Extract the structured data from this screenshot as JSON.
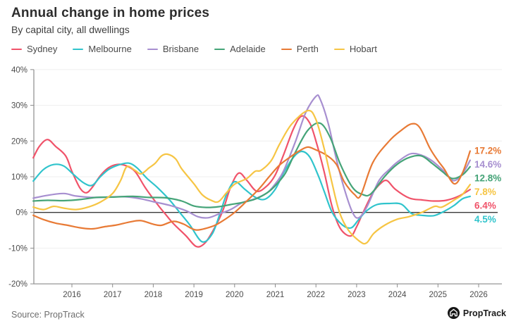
{
  "header": {
    "title": "Annual change in home prices",
    "subtitle": "By capital city, all dwellings"
  },
  "footer": {
    "source": "Source: PropTrack",
    "logo_text": "PropTrack"
  },
  "chart_data": {
    "type": "line",
    "title": "Annual change in home prices",
    "subtitle": "By capital city, all dwellings",
    "grid": "horizontal",
    "legend_position": "top-left",
    "x_axis": {
      "tick_labels": [
        "2016",
        "2017",
        "2018",
        "2019",
        "2020",
        "2021",
        "2022",
        "2023",
        "2024",
        "2025",
        "2026"
      ],
      "range": [
        2015.05,
        2026.45
      ]
    },
    "y_axis": {
      "tick_labels": [
        "40%",
        "30%",
        "20%",
        "10%",
        "0%",
        "-10%",
        "-20%"
      ],
      "tick_values": [
        40,
        30,
        20,
        10,
        0,
        -10,
        -20
      ],
      "range": [
        -20,
        40
      ],
      "zero_line": true
    },
    "series": [
      {
        "name": "Sydney",
        "color": "#f0536a",
        "end_label": "6.4%",
        "points": [
          [
            2015.05,
            15.3
          ],
          [
            2015.2,
            18.5
          ],
          [
            2015.4,
            20.4
          ],
          [
            2015.6,
            18.5
          ],
          [
            2015.85,
            15.8
          ],
          [
            2016.0,
            11.5
          ],
          [
            2016.2,
            6.8
          ],
          [
            2016.35,
            5.5
          ],
          [
            2016.5,
            7.0
          ],
          [
            2016.7,
            10.3
          ],
          [
            2016.9,
            12.5
          ],
          [
            2017.1,
            13.4
          ],
          [
            2017.3,
            13.2
          ],
          [
            2017.55,
            11.5
          ],
          [
            2017.8,
            7.0
          ],
          [
            2018.1,
            2.3
          ],
          [
            2018.3,
            -0.5
          ],
          [
            2018.5,
            -3.2
          ],
          [
            2018.8,
            -6.5
          ],
          [
            2019.05,
            -9.5
          ],
          [
            2019.25,
            -8.8
          ],
          [
            2019.45,
            -5.5
          ],
          [
            2019.7,
            0.2
          ],
          [
            2019.9,
            7.0
          ],
          [
            2020.1,
            11.0
          ],
          [
            2020.3,
            9.0
          ],
          [
            2020.55,
            5.9
          ],
          [
            2020.8,
            7.5
          ],
          [
            2021.0,
            10.5
          ],
          [
            2021.2,
            16.0
          ],
          [
            2021.45,
            23.5
          ],
          [
            2021.65,
            27.0
          ],
          [
            2021.85,
            25.0
          ],
          [
            2022.0,
            20.0
          ],
          [
            2022.2,
            11.5
          ],
          [
            2022.4,
            1.5
          ],
          [
            2022.6,
            -4.5
          ],
          [
            2022.85,
            -6.6
          ],
          [
            2023.0,
            -4.0
          ],
          [
            2023.16,
            0.0
          ],
          [
            2023.4,
            5.5
          ],
          [
            2023.6,
            8.2
          ],
          [
            2023.75,
            8.9
          ],
          [
            2023.95,
            6.5
          ],
          [
            2024.3,
            4.0
          ],
          [
            2024.6,
            3.5
          ],
          [
            2024.9,
            3.2
          ],
          [
            2025.2,
            3.4
          ],
          [
            2025.5,
            4.5
          ],
          [
            2025.79,
            6.4
          ]
        ]
      },
      {
        "name": "Melbourne",
        "color": "#30c4cc",
        "end_label": "4.5%",
        "points": [
          [
            2015.05,
            8.8
          ],
          [
            2015.3,
            12.0
          ],
          [
            2015.55,
            13.4
          ],
          [
            2015.8,
            13.0
          ],
          [
            2016.05,
            10.5
          ],
          [
            2016.3,
            8.2
          ],
          [
            2016.5,
            7.6
          ],
          [
            2016.7,
            10.0
          ],
          [
            2016.9,
            12.0
          ],
          [
            2017.15,
            13.3
          ],
          [
            2017.4,
            13.8
          ],
          [
            2017.6,
            12.5
          ],
          [
            2017.85,
            9.5
          ],
          [
            2018.1,
            7.0
          ],
          [
            2018.4,
            3.5
          ],
          [
            2018.65,
            0.0
          ],
          [
            2018.9,
            -3.5
          ],
          [
            2019.2,
            -8.2
          ],
          [
            2019.45,
            -6.0
          ],
          [
            2019.65,
            0.0
          ],
          [
            2019.8,
            5.0
          ],
          [
            2020.0,
            8.6
          ],
          [
            2020.25,
            6.5
          ],
          [
            2020.5,
            4.3
          ],
          [
            2020.75,
            3.7
          ],
          [
            2021.0,
            6.5
          ],
          [
            2021.2,
            11.0
          ],
          [
            2021.45,
            15.5
          ],
          [
            2021.65,
            17.1
          ],
          [
            2021.85,
            15.5
          ],
          [
            2022.05,
            10.5
          ],
          [
            2022.2,
            6.0
          ],
          [
            2022.4,
            0.0
          ],
          [
            2022.65,
            -3.5
          ],
          [
            2022.87,
            -4.3
          ],
          [
            2023.05,
            -2.0
          ],
          [
            2023.25,
            0.5
          ],
          [
            2023.5,
            2.2
          ],
          [
            2023.8,
            2.5
          ],
          [
            2024.1,
            2.3
          ],
          [
            2024.35,
            -0.3
          ],
          [
            2024.6,
            -0.8
          ],
          [
            2024.9,
            -0.9
          ],
          [
            2025.15,
            0.3
          ],
          [
            2025.4,
            2.0
          ],
          [
            2025.6,
            3.8
          ],
          [
            2025.79,
            4.5
          ]
        ]
      },
      {
        "name": "Brisbane",
        "color": "#a78fd0",
        "end_label": "14.6%",
        "points": [
          [
            2015.05,
            4.0
          ],
          [
            2015.4,
            4.8
          ],
          [
            2015.8,
            5.3
          ],
          [
            2016.1,
            4.6
          ],
          [
            2016.5,
            4.2
          ],
          [
            2016.9,
            4.3
          ],
          [
            2017.3,
            4.4
          ],
          [
            2017.7,
            3.8
          ],
          [
            2018.0,
            3.0
          ],
          [
            2018.4,
            2.0
          ],
          [
            2018.8,
            0.5
          ],
          [
            2019.1,
            -1.2
          ],
          [
            2019.35,
            -1.5
          ],
          [
            2019.6,
            -0.5
          ],
          [
            2019.9,
            0.8
          ],
          [
            2020.2,
            2.8
          ],
          [
            2020.5,
            3.8
          ],
          [
            2020.8,
            5.5
          ],
          [
            2021.0,
            8.0
          ],
          [
            2021.2,
            11.5
          ],
          [
            2021.5,
            20.0
          ],
          [
            2021.75,
            28.0
          ],
          [
            2022.0,
            32.5
          ],
          [
            2022.1,
            31.8
          ],
          [
            2022.3,
            25.0
          ],
          [
            2022.5,
            15.0
          ],
          [
            2022.7,
            6.5
          ],
          [
            2022.9,
            0.0
          ],
          [
            2023.05,
            -1.5
          ],
          [
            2023.25,
            1.5
          ],
          [
            2023.55,
            8.9
          ],
          [
            2023.8,
            12.0
          ],
          [
            2024.0,
            14.1
          ],
          [
            2024.32,
            16.4
          ],
          [
            2024.6,
            16.0
          ],
          [
            2024.85,
            14.5
          ],
          [
            2025.15,
            11.5
          ],
          [
            2025.38,
            8.9
          ],
          [
            2025.6,
            10.8
          ],
          [
            2025.79,
            14.6
          ]
        ]
      },
      {
        "name": "Adelaide",
        "color": "#45a478",
        "end_label": "12.8%",
        "points": [
          [
            2015.05,
            3.2
          ],
          [
            2015.4,
            3.4
          ],
          [
            2015.8,
            3.3
          ],
          [
            2016.2,
            3.6
          ],
          [
            2016.6,
            4.2
          ],
          [
            2017.0,
            4.3
          ],
          [
            2017.5,
            4.5
          ],
          [
            2017.9,
            4.2
          ],
          [
            2018.3,
            4.1
          ],
          [
            2018.7,
            3.2
          ],
          [
            2019.0,
            1.8
          ],
          [
            2019.3,
            1.4
          ],
          [
            2019.6,
            1.6
          ],
          [
            2019.9,
            2.2
          ],
          [
            2020.2,
            2.8
          ],
          [
            2020.5,
            3.7
          ],
          [
            2020.8,
            5.5
          ],
          [
            2021.0,
            7.5
          ],
          [
            2021.25,
            11.0
          ],
          [
            2021.5,
            17.0
          ],
          [
            2021.8,
            23.0
          ],
          [
            2022.1,
            25.0
          ],
          [
            2022.35,
            21.0
          ],
          [
            2022.6,
            13.5
          ],
          [
            2022.9,
            7.0
          ],
          [
            2023.15,
            5.0
          ],
          [
            2023.35,
            5.2
          ],
          [
            2023.7,
            10.2
          ],
          [
            2024.0,
            13.5
          ],
          [
            2024.32,
            15.5
          ],
          [
            2024.6,
            15.8
          ],
          [
            2024.85,
            13.8
          ],
          [
            2025.1,
            11.5
          ],
          [
            2025.35,
            9.5
          ],
          [
            2025.6,
            10.5
          ],
          [
            2025.79,
            12.8
          ]
        ]
      },
      {
        "name": "Perth",
        "color": "#e87a35",
        "end_label": "17.2%",
        "points": [
          [
            2015.05,
            -0.8
          ],
          [
            2015.3,
            -2.0
          ],
          [
            2015.6,
            -3.0
          ],
          [
            2015.9,
            -3.6
          ],
          [
            2016.2,
            -4.3
          ],
          [
            2016.5,
            -4.6
          ],
          [
            2016.8,
            -4.0
          ],
          [
            2017.1,
            -3.5
          ],
          [
            2017.45,
            -2.6
          ],
          [
            2017.7,
            -2.3
          ],
          [
            2018.0,
            -3.3
          ],
          [
            2018.2,
            -3.6
          ],
          [
            2018.5,
            -2.5
          ],
          [
            2018.75,
            -3.3
          ],
          [
            2019.05,
            -4.9
          ],
          [
            2019.45,
            -3.9
          ],
          [
            2019.7,
            -2.4
          ],
          [
            2020.0,
            0.0
          ],
          [
            2020.3,
            3.2
          ],
          [
            2020.6,
            6.6
          ],
          [
            2020.85,
            10.0
          ],
          [
            2021.1,
            13.2
          ],
          [
            2021.4,
            15.8
          ],
          [
            2021.6,
            17.3
          ],
          [
            2021.8,
            18.3
          ],
          [
            2022.0,
            17.5
          ],
          [
            2022.25,
            16.1
          ],
          [
            2022.5,
            13.5
          ],
          [
            2022.7,
            8.5
          ],
          [
            2022.95,
            5.0
          ],
          [
            2023.1,
            4.8
          ],
          [
            2023.4,
            14.0
          ],
          [
            2023.8,
            20.0
          ],
          [
            2024.1,
            23.0
          ],
          [
            2024.35,
            24.8
          ],
          [
            2024.55,
            23.8
          ],
          [
            2024.8,
            18.0
          ],
          [
            2025.0,
            14.5
          ],
          [
            2025.15,
            12.2
          ],
          [
            2025.4,
            8.0
          ],
          [
            2025.6,
            11.0
          ],
          [
            2025.79,
            17.2
          ]
        ]
      },
      {
        "name": "Hobart",
        "color": "#f6c544",
        "end_label": "7.8%",
        "points": [
          [
            2015.05,
            1.5
          ],
          [
            2015.3,
            0.8
          ],
          [
            2015.55,
            1.7
          ],
          [
            2015.8,
            1.2
          ],
          [
            2016.1,
            0.8
          ],
          [
            2016.4,
            1.5
          ],
          [
            2016.7,
            2.9
          ],
          [
            2017.0,
            5.3
          ],
          [
            2017.2,
            9.0
          ],
          [
            2017.35,
            12.8
          ],
          [
            2017.55,
            11.8
          ],
          [
            2017.7,
            10.8
          ],
          [
            2017.9,
            12.5
          ],
          [
            2018.05,
            13.8
          ],
          [
            2018.2,
            15.8
          ],
          [
            2018.35,
            16.3
          ],
          [
            2018.55,
            15.0
          ],
          [
            2018.7,
            12.2
          ],
          [
            2019.0,
            8.0
          ],
          [
            2019.2,
            5.0
          ],
          [
            2019.4,
            3.5
          ],
          [
            2019.6,
            3.0
          ],
          [
            2019.8,
            5.5
          ],
          [
            2020.0,
            7.9
          ],
          [
            2020.3,
            9.5
          ],
          [
            2020.5,
            11.5
          ],
          [
            2020.65,
            11.8
          ],
          [
            2020.9,
            14.5
          ],
          [
            2021.1,
            19.0
          ],
          [
            2021.4,
            24.7
          ],
          [
            2021.8,
            28.5
          ],
          [
            2022.0,
            26.0
          ],
          [
            2022.2,
            18.0
          ],
          [
            2022.4,
            8.0
          ],
          [
            2022.58,
            0.0
          ],
          [
            2022.8,
            -5.0
          ],
          [
            2023.1,
            -8.3
          ],
          [
            2023.25,
            -8.5
          ],
          [
            2023.42,
            -5.9
          ],
          [
            2023.7,
            -3.5
          ],
          [
            2024.0,
            -1.9
          ],
          [
            2024.28,
            -1.2
          ],
          [
            2024.6,
            0.0
          ],
          [
            2024.92,
            1.7
          ],
          [
            2025.1,
            1.5
          ],
          [
            2025.43,
            3.7
          ],
          [
            2025.6,
            5.0
          ],
          [
            2025.79,
            7.8
          ]
        ]
      }
    ],
    "end_labels_order": [
      "17.2%",
      "14.6%",
      "12.8%",
      "7.8%",
      "6.4%",
      "4.5%"
    ]
  }
}
